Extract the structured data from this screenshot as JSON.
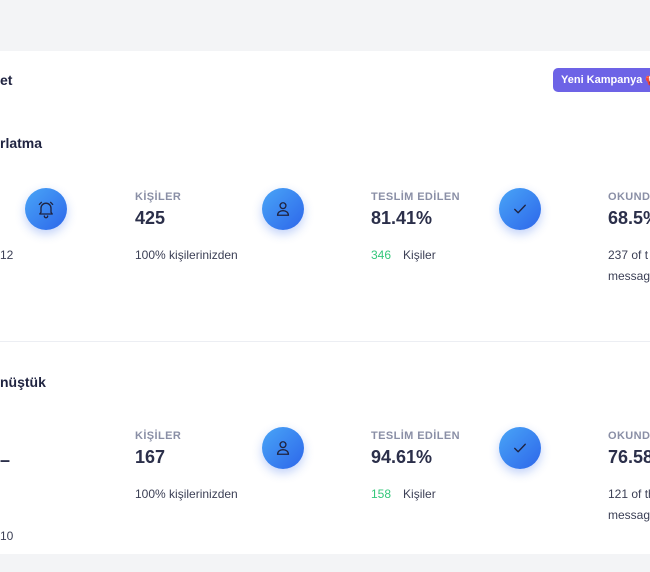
{
  "header": {
    "title": "et",
    "cta_label": "Yeni Kampanya 📢"
  },
  "campaigns": [
    {
      "title": "rlatma",
      "left_sub": "12",
      "contacts": {
        "label": "KİŞİLER",
        "value": "425",
        "sub": "100% kişilerinizden"
      },
      "delivered": {
        "label": "TESLİM EDİLEN",
        "value": "81.41%",
        "count": "346",
        "count_label": "Kişiler"
      },
      "read": {
        "label": "OKUND",
        "value": "68.5%",
        "sub_line1": "237 of t",
        "sub_line2": "messag"
      }
    },
    {
      "title": "nüştük",
      "left_value": "–",
      "left_sub": "10",
      "contacts": {
        "label": "KİŞİLER",
        "value": "167",
        "sub": "100% kişilerinizden"
      },
      "delivered": {
        "label": "TESLİM EDİLEN",
        "value": "94.61%",
        "count": "158",
        "count_label": "Kişiler"
      },
      "read": {
        "label": "OKUND",
        "value": "76.58",
        "sub_line1": "121 of th",
        "sub_line2": "messag"
      }
    }
  ]
}
